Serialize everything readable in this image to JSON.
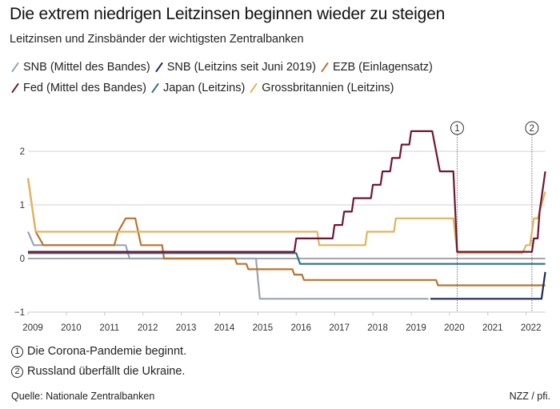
{
  "chart_data": {
    "type": "line",
    "title": "Die extrem niedrigen Leitzinsen beginnen wieder zu steigen",
    "subtitle": "Leitzinsen und Zinsbänder der wichtigsten Zentralbanken",
    "xlabel": "",
    "ylabel": "",
    "xlim": [
      2009,
      2022.5
    ],
    "ylim": [
      -1,
      2.5
    ],
    "x_ticks": [
      "2009",
      "2010",
      "2011",
      "2012",
      "2013",
      "2014",
      "2015",
      "2016",
      "2017",
      "2018",
      "2019",
      "2020",
      "2021",
      "2022"
    ],
    "y_ticks": [
      {
        "value": 2,
        "label": "2"
      },
      {
        "value": 1,
        "label": "1"
      },
      {
        "value": 0,
        "label": "0"
      },
      {
        "value": -1,
        "label": "−1"
      }
    ],
    "grid": "horizontal",
    "legend_position": "top",
    "series": [
      {
        "name": "SNB (Mittel des Bandes)",
        "color": "#9aa3b3",
        "points": [
          [
            2009,
            0.5
          ],
          [
            2009.15,
            0.25
          ],
          [
            2011.55,
            0.25
          ],
          [
            2011.65,
            0.0
          ],
          [
            2014.95,
            0.0
          ],
          [
            2015.05,
            -0.75
          ],
          [
            2019.45,
            -0.75
          ]
        ]
      },
      {
        "name": "SNB (Leitzins seit Juni 2019)",
        "color": "#1e2a5a",
        "points": [
          [
            2019.5,
            -0.75
          ],
          [
            2022.4,
            -0.75
          ],
          [
            2022.5,
            -0.25
          ]
        ]
      },
      {
        "name": "EZB (Einlagensatz)",
        "color": "#b8732e",
        "points": [
          [
            2009,
            1.5
          ],
          [
            2009.2,
            0.5
          ],
          [
            2009.4,
            0.25
          ],
          [
            2011.25,
            0.25
          ],
          [
            2011.35,
            0.5
          ],
          [
            2011.55,
            0.75
          ],
          [
            2011.8,
            0.75
          ],
          [
            2011.95,
            0.25
          ],
          [
            2012.5,
            0.25
          ],
          [
            2012.55,
            0.0
          ],
          [
            2014.4,
            0.0
          ],
          [
            2014.45,
            -0.1
          ],
          [
            2014.7,
            -0.1
          ],
          [
            2014.75,
            -0.2
          ],
          [
            2015.9,
            -0.2
          ],
          [
            2015.95,
            -0.3
          ],
          [
            2016.15,
            -0.3
          ],
          [
            2016.2,
            -0.4
          ],
          [
            2019.65,
            -0.4
          ],
          [
            2019.7,
            -0.5
          ],
          [
            2022.5,
            -0.5
          ]
        ]
      },
      {
        "name": "Fed (Mittel des Bandes)",
        "color": "#6e1634",
        "points": [
          [
            2009,
            0.125
          ],
          [
            2015.95,
            0.125
          ],
          [
            2016.0,
            0.375
          ],
          [
            2016.95,
            0.375
          ],
          [
            2017.0,
            0.625
          ],
          [
            2017.2,
            0.625
          ],
          [
            2017.25,
            0.875
          ],
          [
            2017.45,
            0.875
          ],
          [
            2017.5,
            1.125
          ],
          [
            2017.95,
            1.125
          ],
          [
            2018.0,
            1.375
          ],
          [
            2018.2,
            1.375
          ],
          [
            2018.25,
            1.625
          ],
          [
            2018.45,
            1.625
          ],
          [
            2018.5,
            1.875
          ],
          [
            2018.7,
            1.875
          ],
          [
            2018.75,
            2.125
          ],
          [
            2018.95,
            2.125
          ],
          [
            2019.0,
            2.375
          ],
          [
            2019.55,
            2.375
          ],
          [
            2019.75,
            1.625
          ],
          [
            2020.1,
            1.625
          ],
          [
            2020.2,
            0.125
          ],
          [
            2022.15,
            0.125
          ],
          [
            2022.2,
            0.375
          ],
          [
            2022.3,
            0.375
          ],
          [
            2022.35,
            0.875
          ],
          [
            2022.5,
            1.625
          ]
        ]
      },
      {
        "name": "Japan (Leitzins)",
        "color": "#2f7184",
        "points": [
          [
            2009,
            0.1
          ],
          [
            2016.0,
            0.1
          ],
          [
            2016.1,
            -0.1
          ],
          [
            2022.5,
            -0.1
          ]
        ]
      },
      {
        "name": "Grossbritannien (Leitzins)",
        "color": "#e0b35c",
        "points": [
          [
            2009,
            1.5
          ],
          [
            2009.2,
            0.5
          ],
          [
            2016.55,
            0.5
          ],
          [
            2016.6,
            0.25
          ],
          [
            2017.8,
            0.25
          ],
          [
            2017.85,
            0.5
          ],
          [
            2018.55,
            0.5
          ],
          [
            2018.6,
            0.75
          ],
          [
            2020.1,
            0.75
          ],
          [
            2020.2,
            0.1
          ],
          [
            2021.9,
            0.1
          ],
          [
            2022.0,
            0.25
          ],
          [
            2022.1,
            0.25
          ],
          [
            2022.15,
            0.5
          ],
          [
            2022.2,
            0.75
          ],
          [
            2022.3,
            0.75
          ],
          [
            2022.5,
            1.25
          ]
        ]
      },
      {
        "name": "Nulllinie",
        "color": "#8c8c99",
        "role": "baseline",
        "points": [
          [
            2009,
            0.0
          ],
          [
            2022.5,
            0.0
          ]
        ]
      }
    ],
    "annotations": [
      {
        "id": "1",
        "x": 2020.2,
        "label": "Die Corona-Pandemie beginnt."
      },
      {
        "id": "2",
        "x": 2022.15,
        "label": "Russland überfällt die Ukraine."
      }
    ]
  },
  "legend": [
    [
      {
        "label": "SNB (Mittel des Bandes)",
        "color": "#9aa3b3"
      },
      {
        "label": "SNB (Leitzins seit Juni 2019)",
        "color": "#1e2a5a"
      },
      {
        "label": "EZB (Einlagensatz)",
        "color": "#b8732e"
      }
    ],
    [
      {
        "label": "Fed (Mittel des Bandes)",
        "color": "#6e1634"
      },
      {
        "label": "Japan (Leitzins)",
        "color": "#2f7184"
      },
      {
        "label": "Grossbritannien (Leitzins)",
        "color": "#e0b35c"
      }
    ]
  ],
  "notes": [
    {
      "num": "1",
      "text": "Die Corona-Pandemie beginnt."
    },
    {
      "num": "2",
      "text": "Russland überfällt die Ukraine."
    }
  ],
  "source": "Quelle: Nationale Zentralbanken",
  "credit": "NZZ / pfi."
}
